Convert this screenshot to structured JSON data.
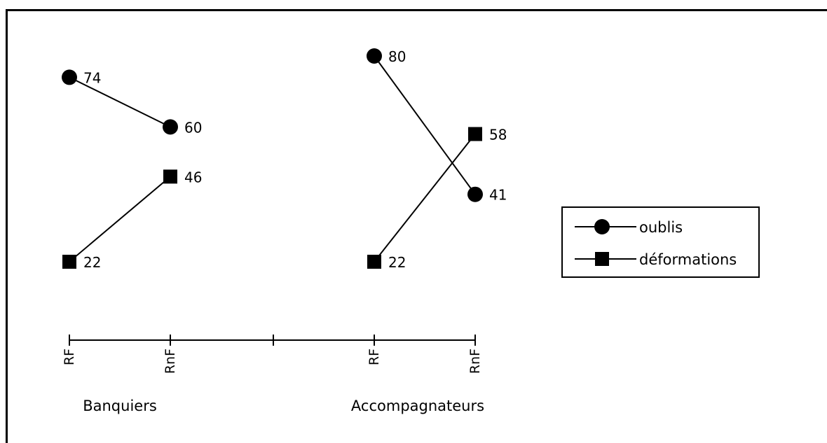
{
  "chart_data": {
    "type": "line",
    "categories": [
      "RF",
      "RnF",
      "RF",
      "RnF"
    ],
    "groups": [
      {
        "name": "Banquiers",
        "categories": [
          "RF",
          "RnF"
        ]
      },
      {
        "name": "Accompagnateurs",
        "categories": [
          "RF",
          "RnF"
        ]
      }
    ],
    "series": [
      {
        "name": "oublis",
        "marker": "circle",
        "values": {
          "Banquiers": [
            74,
            60
          ],
          "Accompagnateurs": [
            80,
            41
          ]
        }
      },
      {
        "name": "déformations",
        "marker": "square",
        "values": {
          "Banquiers": [
            22,
            46
          ],
          "Accompagnateurs": [
            22,
            58
          ]
        }
      }
    ],
    "title": "",
    "xlabel": "",
    "ylabel": "",
    "ylim": [
      0,
      100
    ],
    "grid": false,
    "legend": "right",
    "colors": {
      "line": "#000000",
      "marker": "#000000"
    }
  }
}
